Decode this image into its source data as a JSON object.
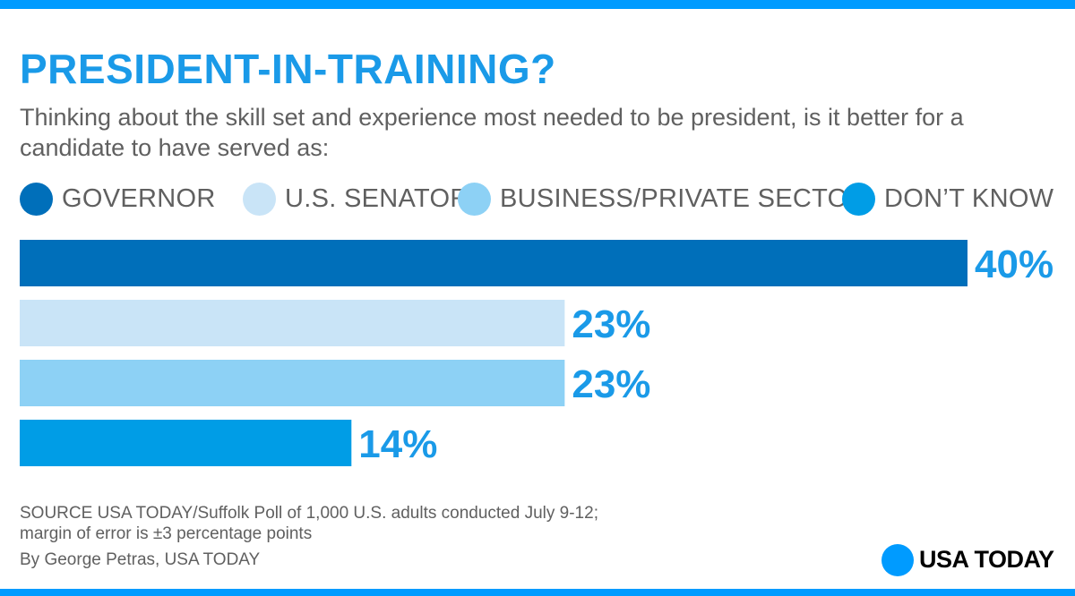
{
  "chart_data": {
    "type": "bar",
    "orientation": "horizontal",
    "title": "PRESIDENT-IN-TRAINING?",
    "subtitle": "Thinking about the skill set and experience most needed to be president, is it better for a candidate to have served as:",
    "categories": [
      "GOVERNOR",
      "U.S. SENATOR",
      "BUSINESS/PRIVATE SECTOR",
      "DON’T KNOW"
    ],
    "values": [
      40,
      23,
      23,
      14
    ],
    "value_labels": [
      "40%",
      "23%",
      "23%",
      "14%"
    ],
    "colors": [
      "#006fba",
      "#c9e4f7",
      "#8dd1f5",
      "#009de6"
    ],
    "xlim": [
      0,
      40
    ],
    "legend_position": "top",
    "grid": false,
    "xlabel": "",
    "ylabel": ""
  },
  "footer": {
    "source_line1": "SOURCE USA TODAY/Suffolk Poll of 1,000 U.S. adults conducted July 9-12;",
    "source_line2": "margin of error is ±3 percentage points",
    "credit": "By George Petras, USA TODAY"
  },
  "logo": {
    "text": "USA TODAY",
    "color": "#009bff"
  }
}
